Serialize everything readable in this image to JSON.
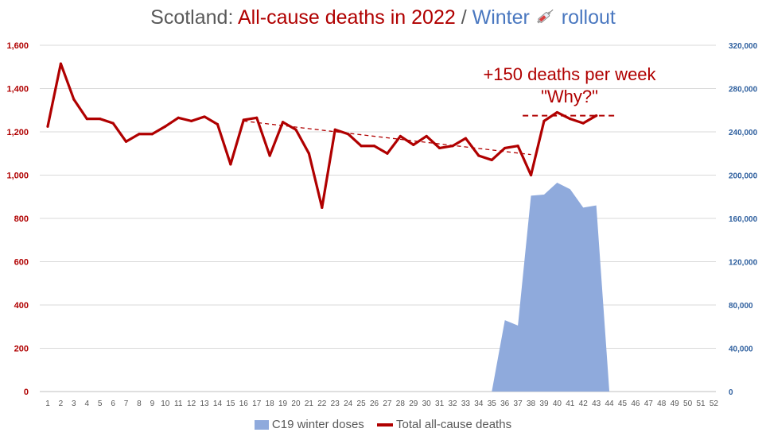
{
  "title": {
    "part1": "Scotland: ",
    "part2": "All-cause deaths in 2022",
    "part3": " / ",
    "part4": "Winter ",
    "part5": " rollout",
    "icon": "syringe-icon"
  },
  "annotation": {
    "line1": "+150 deaths per week",
    "line2": "\"Why?\""
  },
  "legend": {
    "doses": "C19 winter doses",
    "deaths": "Total all-cause deaths"
  },
  "colors": {
    "deaths": "#b00000",
    "doses": "#8faadc",
    "left_axis": "#b00000",
    "right_axis": "#2e5f9e",
    "grid": "#d9d9d9"
  },
  "chart_data": {
    "type": "line",
    "x": [
      1,
      2,
      3,
      4,
      5,
      6,
      7,
      8,
      9,
      10,
      11,
      12,
      13,
      14,
      15,
      16,
      17,
      18,
      19,
      20,
      21,
      22,
      23,
      24,
      25,
      26,
      27,
      28,
      29,
      30,
      31,
      32,
      33,
      34,
      35,
      36,
      37,
      38,
      39,
      40,
      41,
      42,
      43,
      44,
      45,
      46,
      47,
      48,
      49,
      50,
      51,
      52
    ],
    "x_tick_labels": [
      "1",
      "2",
      "3",
      "4",
      "5",
      "6",
      "7",
      "8",
      "9",
      "10",
      "11",
      "12",
      "13",
      "14",
      "15",
      "16",
      "17",
      "18",
      "19",
      "20",
      "21",
      "22",
      "23",
      "24",
      "25",
      "26",
      "27",
      "28",
      "29",
      "30",
      "31",
      "32",
      "33",
      "34",
      "35",
      "36",
      "37",
      "38",
      "39",
      "40",
      "41",
      "42",
      "43",
      "44",
      "45",
      "46",
      "47",
      "48",
      "49",
      "50",
      "51",
      "52"
    ],
    "series": [
      {
        "name": "Total all-cause deaths",
        "axis": "left",
        "type": "line",
        "x": [
          1,
          2,
          3,
          4,
          5,
          6,
          7,
          8,
          9,
          10,
          11,
          12,
          13,
          14,
          15,
          16,
          17,
          18,
          19,
          20,
          21,
          22,
          23,
          24,
          25,
          26,
          27,
          28,
          29,
          30,
          31,
          32,
          33,
          34,
          35,
          36,
          37,
          38,
          39,
          40,
          41,
          42,
          43
        ],
        "values": [
          1225,
          1515,
          1350,
          1260,
          1260,
          1240,
          1155,
          1190,
          1190,
          1225,
          1265,
          1250,
          1270,
          1235,
          1050,
          1255,
          1265,
          1090,
          1245,
          1210,
          1100,
          850,
          1210,
          1190,
          1135,
          1135,
          1100,
          1180,
          1140,
          1180,
          1125,
          1135,
          1170,
          1090,
          1070,
          1125,
          1135,
          1000,
          1250,
          1290,
          1260,
          1240,
          1275
        ]
      },
      {
        "name": "C19 winter doses",
        "axis": "right",
        "type": "area",
        "x": [
          35,
          36,
          37,
          38,
          39,
          40,
          41,
          42,
          43,
          44
        ],
        "values": [
          0,
          66000,
          61000,
          181000,
          182000,
          193000,
          187000,
          170000,
          172000,
          0
        ]
      }
    ],
    "trendline": {
      "x": [
        16,
        38
      ],
      "y": [
        1250,
        1095
      ]
    },
    "reference_line": {
      "x": [
        37,
        45
      ],
      "y": [
        1275,
        1275
      ]
    },
    "ylim_left": [
      0,
      1600
    ],
    "yticks_left": [
      0,
      200,
      400,
      600,
      800,
      1000,
      1200,
      1400,
      1600
    ],
    "ytick_labels_left": [
      "0",
      "200",
      "400",
      "600",
      "800",
      "1,000",
      "1,200",
      "1,400",
      "1,600"
    ],
    "ylim_right": [
      0,
      320000
    ],
    "yticks_right": [
      0,
      40000,
      80000,
      120000,
      160000,
      200000,
      240000,
      280000,
      320000
    ],
    "ytick_labels_right": [
      "0",
      "40,000",
      "80,000",
      "120,000",
      "160,000",
      "200,000",
      "240,000",
      "280,000",
      "320,000"
    ],
    "xlim": [
      1,
      52
    ],
    "grid": true,
    "legend_position": "bottom"
  }
}
